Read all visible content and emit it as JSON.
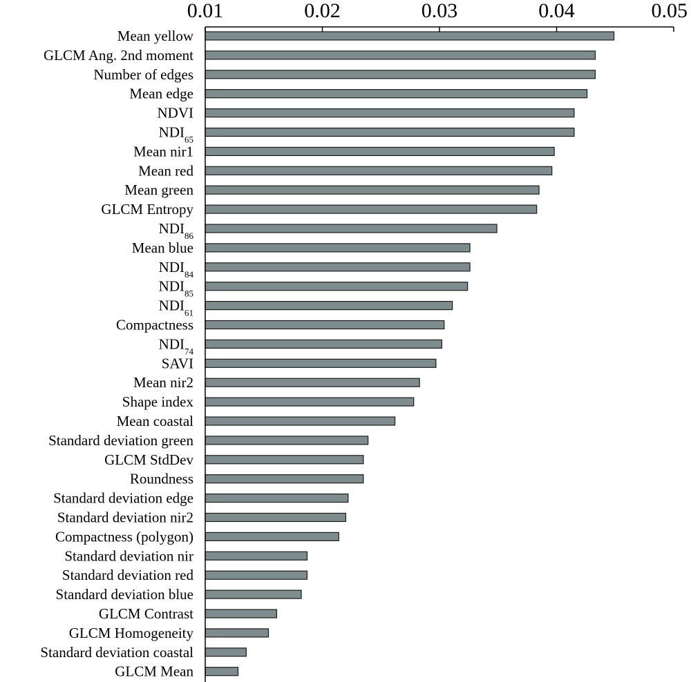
{
  "chart_data": {
    "type": "bar",
    "orientation": "horizontal",
    "title": "",
    "xlabel": "",
    "ylabel": "",
    "xlim": [
      0.01,
      0.05
    ],
    "x_ticks": [
      0.01,
      0.02,
      0.03,
      0.04,
      0.05
    ],
    "x_tick_labels": [
      "0.01",
      "0.02",
      "0.03",
      "0.04",
      "0.05"
    ],
    "x_axis_position": "top",
    "grid": false,
    "bar_color": "#7f8c8d",
    "bar_stroke": "#1a1a1a",
    "categories": [
      {
        "label": "Mean yellow",
        "sub": ""
      },
      {
        "label": "GLCM Ang. 2nd moment",
        "sub": ""
      },
      {
        "label": "Number of edges",
        "sub": ""
      },
      {
        "label": "Mean edge",
        "sub": ""
      },
      {
        "label": "NDVI",
        "sub": ""
      },
      {
        "label": "NDI",
        "sub": "65"
      },
      {
        "label": "Mean nir1",
        "sub": ""
      },
      {
        "label": "Mean red",
        "sub": ""
      },
      {
        "label": "Mean green",
        "sub": ""
      },
      {
        "label": "GLCM Entropy",
        "sub": ""
      },
      {
        "label": "NDI",
        "sub": "86"
      },
      {
        "label": "Mean blue",
        "sub": ""
      },
      {
        "label": "NDI",
        "sub": "84"
      },
      {
        "label": "NDI",
        "sub": "85"
      },
      {
        "label": "NDI",
        "sub": "61"
      },
      {
        "label": "Compactness",
        "sub": ""
      },
      {
        "label": "NDI",
        "sub": "74"
      },
      {
        "label": "SAVI",
        "sub": ""
      },
      {
        "label": "Mean nir2",
        "sub": ""
      },
      {
        "label": "Shape index",
        "sub": ""
      },
      {
        "label": "Mean coastal",
        "sub": ""
      },
      {
        "label": "Standard deviation green",
        "sub": ""
      },
      {
        "label": "GLCM StdDev",
        "sub": ""
      },
      {
        "label": "Roundness",
        "sub": ""
      },
      {
        "label": "Standard deviation edge",
        "sub": ""
      },
      {
        "label": "Standard deviation nir2",
        "sub": ""
      },
      {
        "label": "Compactness (polygon)",
        "sub": ""
      },
      {
        "label": "Standard deviation nir",
        "sub": ""
      },
      {
        "label": "Standard deviation red",
        "sub": ""
      },
      {
        "label": "Standard deviation blue",
        "sub": ""
      },
      {
        "label": "GLCM Contrast",
        "sub": ""
      },
      {
        "label": "GLCM Homogeneity",
        "sub": ""
      },
      {
        "label": "Standard deviation coastal",
        "sub": ""
      },
      {
        "label": "GLCM Mean",
        "sub": ""
      }
    ],
    "values": [
      0.0449,
      0.0433,
      0.0433,
      0.0426,
      0.0415,
      0.0415,
      0.0398,
      0.0396,
      0.0385,
      0.0383,
      0.0349,
      0.0326,
      0.0326,
      0.0324,
      0.0311,
      0.0304,
      0.0302,
      0.0297,
      0.0283,
      0.0278,
      0.0262,
      0.0239,
      0.0235,
      0.0235,
      0.0222,
      0.022,
      0.0214,
      0.0187,
      0.0187,
      0.0182,
      0.0161,
      0.0154,
      0.0135,
      0.0128
    ]
  }
}
